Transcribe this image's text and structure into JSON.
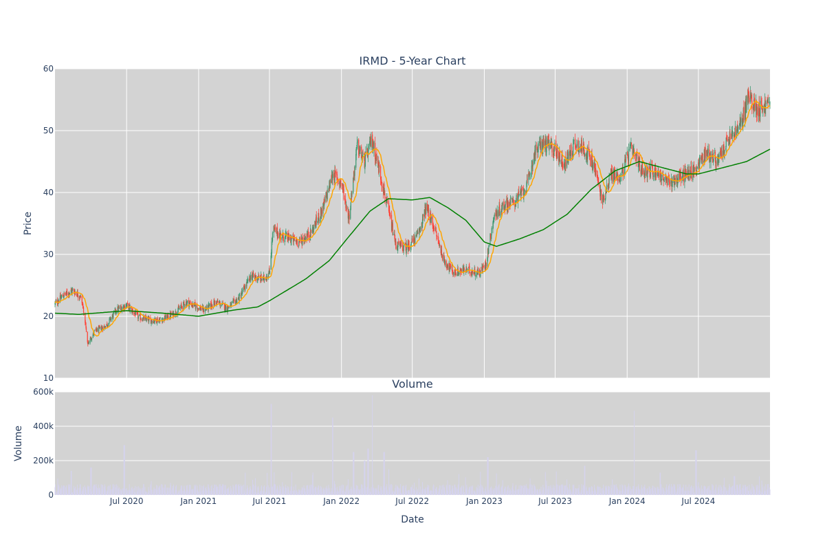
{
  "chart_data": {
    "type": "candlestick",
    "title": "IRMD - 5-Year Chart",
    "price_panel": {
      "ylabel": "Price",
      "ylim": [
        10,
        60
      ],
      "yticks": [
        10,
        20,
        30,
        40,
        50,
        60
      ],
      "grid": true,
      "colors": {
        "background": "#d3d3d3",
        "up": "#3d9970",
        "down": "#ff4136",
        "ma_short": "#ffa500",
        "ma_long": "#008000",
        "grid": "#ffffff"
      },
      "close_path": [
        [
          "2019-12-31",
          22.0
        ],
        [
          "2020-01-20",
          23.3
        ],
        [
          "2020-02-15",
          24.2
        ],
        [
          "2020-03-05",
          23.2
        ],
        [
          "2020-03-15",
          20.5
        ],
        [
          "2020-03-23",
          15.5
        ],
        [
          "2020-04-10",
          17.5
        ],
        [
          "2020-05-10",
          18.5
        ],
        [
          "2020-06-05",
          21.0
        ],
        [
          "2020-07-01",
          21.8
        ],
        [
          "2020-08-01",
          19.8
        ],
        [
          "2020-09-01",
          19.3
        ],
        [
          "2020-10-01",
          19.5
        ],
        [
          "2020-11-01",
          20.5
        ],
        [
          "2020-12-01",
          22.3
        ],
        [
          "2021-01-15",
          21.0
        ],
        [
          "2021-02-15",
          22.3
        ],
        [
          "2021-03-15",
          21.3
        ],
        [
          "2021-04-15",
          23.0
        ],
        [
          "2021-05-15",
          26.5
        ],
        [
          "2021-06-15",
          26.0
        ],
        [
          "2021-07-01",
          27.0
        ],
        [
          "2021-07-10",
          34.0
        ],
        [
          "2021-08-01",
          33.0
        ],
        [
          "2021-09-15",
          32.0
        ],
        [
          "2021-10-15",
          33.5
        ],
        [
          "2021-11-15",
          37.5
        ],
        [
          "2021-12-10",
          43.0
        ],
        [
          "2022-01-01",
          41.5
        ],
        [
          "2022-01-20",
          36.0
        ],
        [
          "2022-02-10",
          47.5
        ],
        [
          "2022-03-01",
          45.0
        ],
        [
          "2022-03-20",
          48.5
        ],
        [
          "2022-04-10",
          43.0
        ],
        [
          "2022-05-01",
          37.0
        ],
        [
          "2022-05-20",
          31.5
        ],
        [
          "2022-06-15",
          31.0
        ],
        [
          "2022-07-15",
          33.0
        ],
        [
          "2022-08-05",
          37.5
        ],
        [
          "2022-08-25",
          34.5
        ],
        [
          "2022-09-20",
          29.0
        ],
        [
          "2022-10-15",
          27.0
        ],
        [
          "2022-11-15",
          27.5
        ],
        [
          "2022-12-20",
          27.0
        ],
        [
          "2023-01-05",
          28.5
        ],
        [
          "2023-01-25",
          36.0
        ],
        [
          "2023-02-20",
          38.0
        ],
        [
          "2023-03-20",
          38.5
        ],
        [
          "2023-04-20",
          41.0
        ],
        [
          "2023-05-10",
          46.5
        ],
        [
          "2023-06-01",
          48.0
        ],
        [
          "2023-07-01",
          47.0
        ],
        [
          "2023-07-25",
          44.5
        ],
        [
          "2023-08-20",
          48.0
        ],
        [
          "2023-09-15",
          47.0
        ],
        [
          "2023-10-10",
          44.0
        ],
        [
          "2023-10-30",
          38.5
        ],
        [
          "2023-11-20",
          43.0
        ],
        [
          "2023-12-15",
          42.5
        ],
        [
          "2024-01-10",
          47.0
        ],
        [
          "2024-02-10",
          43.5
        ],
        [
          "2024-03-15",
          43.5
        ],
        [
          "2024-04-15",
          41.5
        ],
        [
          "2024-05-15",
          42.5
        ],
        [
          "2024-06-20",
          43.5
        ],
        [
          "2024-07-20",
          46.5
        ],
        [
          "2024-08-20",
          45.0
        ],
        [
          "2024-09-15",
          48.5
        ],
        [
          "2024-10-15",
          50.5
        ],
        [
          "2024-11-05",
          55.5
        ],
        [
          "2024-12-01",
          53.5
        ],
        [
          "2024-12-31",
          54.5
        ]
      ],
      "ma_long_path": [
        [
          "2019-12-31",
          20.5
        ],
        [
          "2020-03-01",
          20.3
        ],
        [
          "2020-07-01",
          20.9
        ],
        [
          "2020-10-01",
          20.5
        ],
        [
          "2021-01-01",
          20.0
        ],
        [
          "2021-04-01",
          21.0
        ],
        [
          "2021-06-01",
          21.5
        ],
        [
          "2021-07-01",
          22.5
        ],
        [
          "2021-10-01",
          26.0
        ],
        [
          "2021-12-01",
          29.0
        ],
        [
          "2022-01-15",
          32.5
        ],
        [
          "2022-03-15",
          37.0
        ],
        [
          "2022-05-01",
          39.0
        ],
        [
          "2022-07-01",
          38.8
        ],
        [
          "2022-08-15",
          39.2
        ],
        [
          "2022-10-01",
          37.5
        ],
        [
          "2022-11-15",
          35.5
        ],
        [
          "2023-01-01",
          32.0
        ],
        [
          "2023-02-01",
          31.3
        ],
        [
          "2023-04-01",
          32.5
        ],
        [
          "2023-06-01",
          34.0
        ],
        [
          "2023-08-01",
          36.5
        ],
        [
          "2023-10-01",
          40.5
        ],
        [
          "2023-12-01",
          43.5
        ],
        [
          "2024-02-01",
          45.0
        ],
        [
          "2024-04-01",
          44.0
        ],
        [
          "2024-06-01",
          43.0
        ],
        [
          "2024-07-01",
          43.0
        ],
        [
          "2024-09-01",
          44.0
        ],
        [
          "2024-11-01",
          45.0
        ],
        [
          "2024-12-31",
          47.0
        ]
      ]
    },
    "volume_panel": {
      "title": "Volume",
      "ylabel": "Volume",
      "ylim": [
        0,
        600000
      ],
      "yticks": [
        0,
        200000,
        400000,
        600000
      ],
      "ytick_labels": [
        "0",
        "200k",
        "400k",
        "600k"
      ],
      "color": "#d5d3ed",
      "baseline": 40000,
      "spikes": [
        [
          "2020-02-10",
          140000
        ],
        [
          "2020-04-01",
          160000
        ],
        [
          "2020-06-25",
          290000
        ],
        [
          "2021-05-01",
          130000
        ],
        [
          "2021-07-05",
          530000
        ],
        [
          "2021-12-10",
          450000
        ],
        [
          "2022-02-01",
          250000
        ],
        [
          "2022-03-01",
          200000
        ],
        [
          "2022-03-10",
          270000
        ],
        [
          "2022-03-20",
          580000
        ],
        [
          "2022-04-20",
          250000
        ],
        [
          "2022-05-01",
          150000
        ],
        [
          "2023-01-10",
          220000
        ],
        [
          "2023-09-15",
          170000
        ],
        [
          "2024-01-20",
          490000
        ],
        [
          "2024-03-25",
          130000
        ],
        [
          "2024-06-25",
          260000
        ],
        [
          "2024-10-01",
          110000
        ]
      ]
    },
    "x": {
      "label": "Date",
      "range": [
        "2019-12-31",
        "2024-12-31"
      ],
      "ticks": [
        {
          "date": "2020-07-01",
          "label": "Jul 2020"
        },
        {
          "date": "2021-01-01",
          "label": "Jan 2021"
        },
        {
          "date": "2021-07-01",
          "label": "Jul 2021"
        },
        {
          "date": "2022-01-01",
          "label": "Jan 2022"
        },
        {
          "date": "2022-07-01",
          "label": "Jul 2022"
        },
        {
          "date": "2023-01-01",
          "label": "Jan 2023"
        },
        {
          "date": "2023-07-01",
          "label": "Jul 2023"
        },
        {
          "date": "2024-01-01",
          "label": "Jan 2024"
        },
        {
          "date": "2024-07-01",
          "label": "Jul 2024"
        }
      ]
    }
  }
}
